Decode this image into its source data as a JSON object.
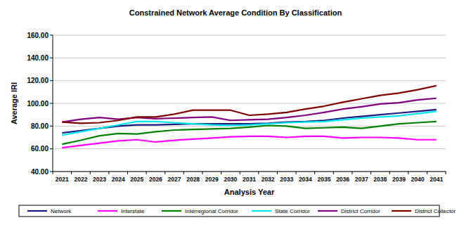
{
  "chart_data": {
    "type": "line",
    "title": "Constrained Network Average Condition By Classification",
    "x_label": "Analysis Year",
    "y_label": "Average IRI",
    "categories": [
      "2021",
      "2022",
      "2023",
      "2024",
      "2025",
      "2026",
      "2027",
      "2028",
      "2029",
      "2030",
      "2031",
      "2032",
      "2033",
      "2034",
      "2035",
      "2036",
      "2037",
      "2038",
      "2039",
      "2040",
      "2041"
    ],
    "ylim": [
      40,
      160
    ],
    "yticks": [
      {
        "value": 40,
        "label": "40.00"
      },
      {
        "value": 60,
        "label": "60.00"
      },
      {
        "value": 80,
        "label": "80.00"
      },
      {
        "value": 100,
        "label": "100.00"
      },
      {
        "value": 120,
        "label": "120.00"
      },
      {
        "value": 140,
        "label": "140.00"
      },
      {
        "value": 160,
        "label": "160.00"
      }
    ],
    "grid": true,
    "legend": "bottom",
    "series": [
      {
        "name": "Network",
        "color": "#1a1a80",
        "values": [
          74,
          76,
          78,
          80,
          81,
          81,
          81.5,
          82,
          82,
          82,
          82,
          82.5,
          83.5,
          84,
          85,
          87,
          88.5,
          90,
          91.5,
          93,
          94.5
        ]
      },
      {
        "name": "Interstate",
        "color": "#ff00ff",
        "values": [
          61,
          63,
          65,
          67,
          68,
          66,
          67.5,
          68.5,
          69.5,
          70.5,
          71,
          71,
          70,
          71,
          71,
          69.5,
          70,
          70,
          69.5,
          68,
          68
        ]
      },
      {
        "name": "Interregional Corridor",
        "color": "#008000",
        "values": [
          64,
          67.5,
          71.5,
          73.5,
          73,
          75,
          76.5,
          77,
          77.5,
          78,
          79,
          80.5,
          80,
          78,
          78.5,
          79,
          78,
          80,
          82,
          83,
          84
        ]
      },
      {
        "name": "State Corridor",
        "color": "#00e5ee",
        "values": [
          72,
          75,
          78,
          81,
          84,
          84,
          83,
          82,
          81,
          80.5,
          81,
          82,
          83,
          83.5,
          84,
          85.5,
          87,
          88,
          89,
          91,
          93
        ]
      },
      {
        "name": "District Corridor",
        "color": "#800080",
        "values": [
          83.5,
          86,
          87.5,
          86,
          87.5,
          86.5,
          87,
          87.5,
          88,
          85,
          85.5,
          86,
          87.5,
          89.5,
          92,
          95,
          97,
          99.5,
          100.5,
          103,
          104.5
        ]
      },
      {
        "name": "District Collector",
        "color": "#800000",
        "values": [
          83.5,
          82.5,
          83,
          85,
          88,
          88,
          90.5,
          94,
          94,
          94,
          89.5,
          90.5,
          92,
          95,
          97.5,
          101,
          104,
          107,
          109,
          112,
          115.5
        ]
      }
    ]
  }
}
